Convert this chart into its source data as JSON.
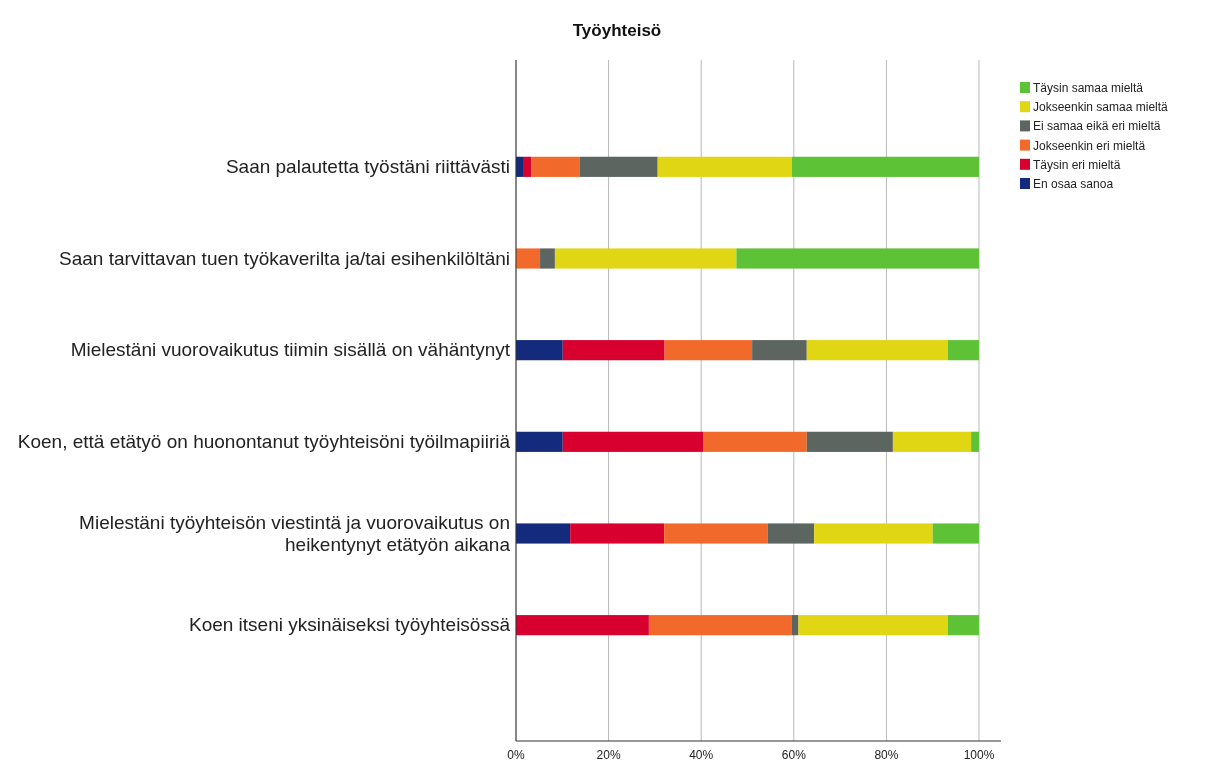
{
  "chart_data": {
    "type": "bar",
    "orientation": "horizontal",
    "stacked": true,
    "title": "Työyhteisö",
    "categories": [
      "Saan palautetta työstäni riittävästi",
      "Saan tarvittavan tuen työkaverilta ja/tai esihenkilöltäni",
      "Mielestäni vuorovaikutus tiimin sisällä on vähäntynyt",
      "Koen, että etätyö on huonontanut työyhteisöni työilmapiiriä",
      "Mielestäni työyhteisön viestintä ja vuorovaikutus on heikentynyt etätyön aikana",
      "Koen itseni yksinäiseksi työyhteisössä"
    ],
    "series": [
      {
        "name": "En osaa sanoa",
        "color": "#142a7c",
        "values": [
          1.7,
          0,
          10.1,
          10.1,
          11.7,
          0
        ]
      },
      {
        "name": "Täysin eri mieltä",
        "color": "#d8002f",
        "values": [
          1.6,
          0,
          22.0,
          30.4,
          20.3,
          28.7
        ]
      },
      {
        "name": "Jokseenkin eri mieltä",
        "color": "#f26a2b",
        "values": [
          10.5,
          5.2,
          18.9,
          22.3,
          22.4,
          30.9
        ]
      },
      {
        "name": "Ei samaa eikä eri mieltä",
        "color": "#5d6560",
        "values": [
          16.8,
          3.2,
          11.8,
          18.6,
          10.0,
          1.4
        ]
      },
      {
        "name": "Jokseenkin samaa mieltä",
        "color": "#e1d613",
        "values": [
          29.0,
          39.2,
          30.5,
          16.9,
          25.6,
          32.3
        ]
      },
      {
        "name": "Täysin samaa mieltä",
        "color": "#5ec237",
        "values": [
          40.4,
          52.4,
          6.7,
          1.7,
          10.0,
          6.7
        ]
      }
    ],
    "xlim": [
      0,
      100
    ],
    "xticks": [
      {
        "value": 0,
        "label": "0%"
      },
      {
        "value": 20,
        "label": "20%"
      },
      {
        "value": 40,
        "label": "40%"
      },
      {
        "value": 60,
        "label": "60%"
      },
      {
        "value": 80,
        "label": "80%"
      },
      {
        "value": 100,
        "label": "100%"
      }
    ],
    "grid": "x",
    "legend": "top right"
  }
}
